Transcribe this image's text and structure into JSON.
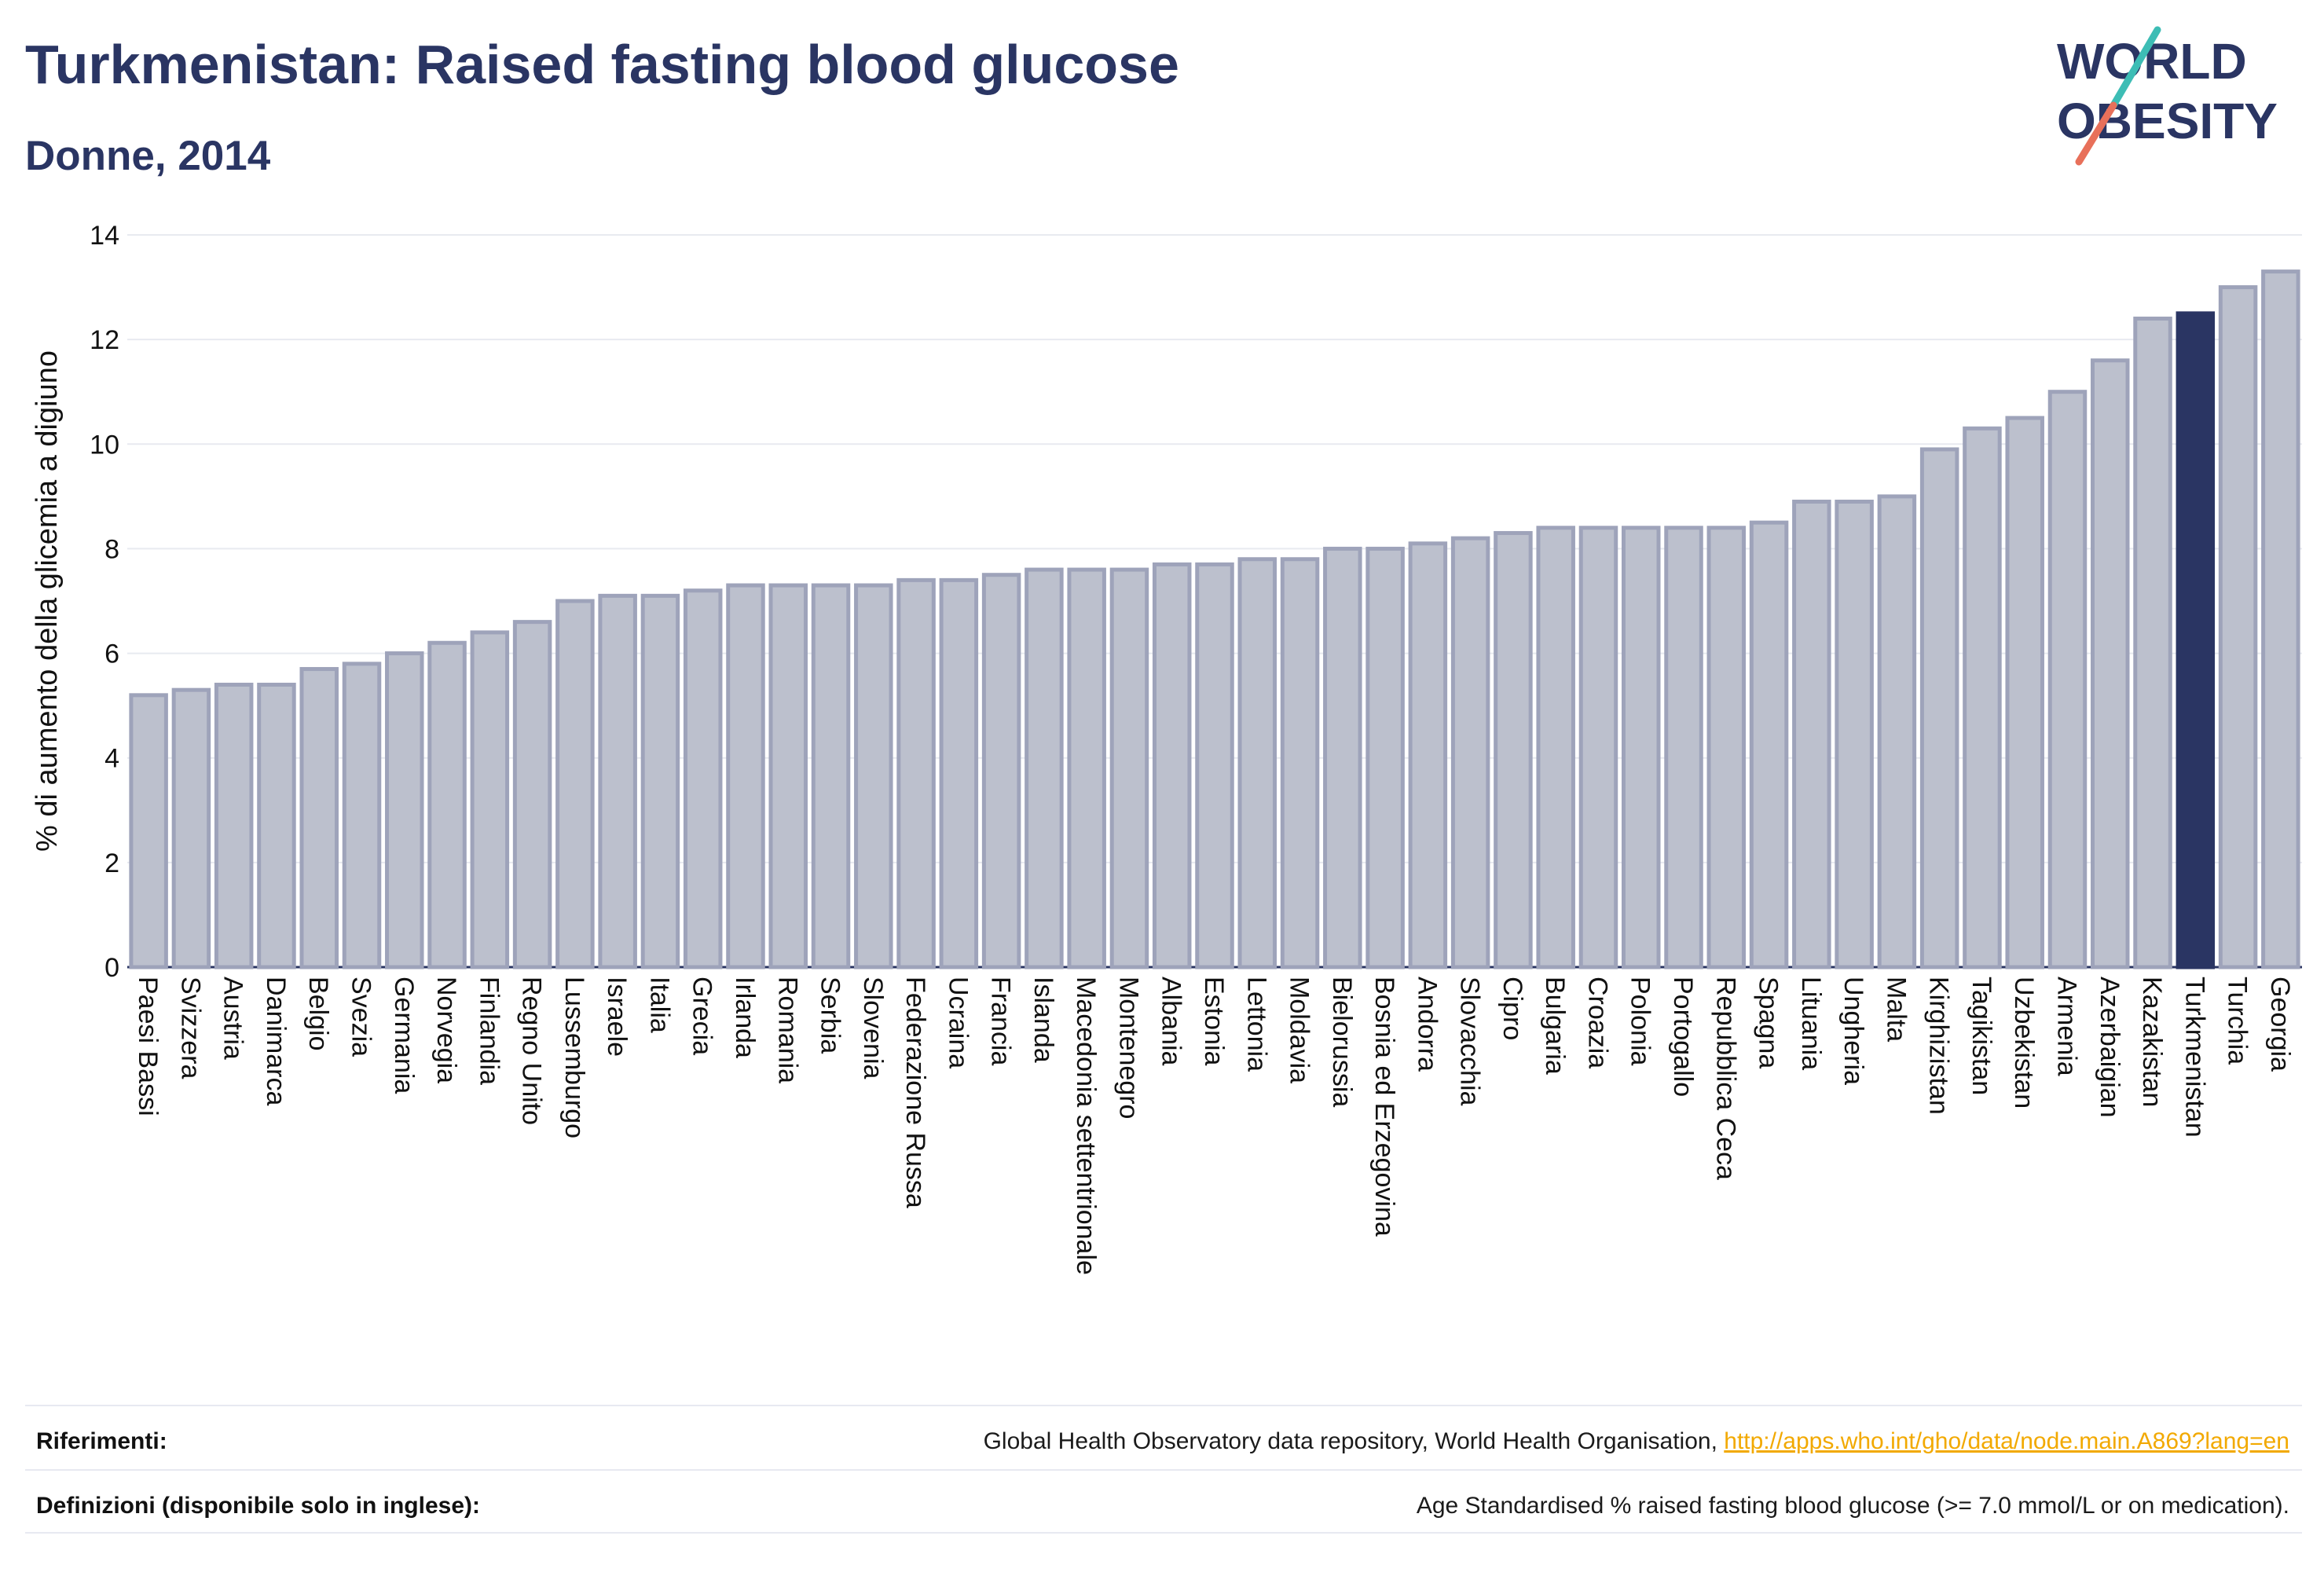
{
  "header": {
    "title": "Turkmenistan: Raised fasting blood glucose",
    "subtitle": "Donne, 2014"
  },
  "logo": {
    "line1": "WORLD",
    "line2": "OBESITY",
    "text_color": "#2a3563",
    "slash_colors": [
      "#3dbdb5",
      "#e8705a"
    ]
  },
  "colors": {
    "bar_default": "#bcc0cd",
    "bar_outline": "#9ea3ba",
    "bar_highlight": "#2a3563",
    "grid": "#e8eaf0",
    "axis_text": "#111111"
  },
  "chart_data": {
    "type": "bar",
    "ylabel": "% di aumento della glicemia a digiuno",
    "ylim": [
      0,
      14
    ],
    "yticks": [
      0,
      2,
      4,
      6,
      8,
      10,
      12,
      14
    ],
    "grid": true,
    "highlight": "Turkmenistan",
    "categories": [
      "Paesi Bassi",
      "Svizzera",
      "Austria",
      "Danimarca",
      "Belgio",
      "Svezia",
      "Germania",
      "Norvegia",
      "Finlandia",
      "Regno Unito",
      "Lussemburgo",
      "Israele",
      "Italia",
      "Grecia",
      "Irlanda",
      "Romania",
      "Serbia",
      "Slovenia",
      "Federazione Russa",
      "Ucraina",
      "Francia",
      "Islanda",
      "Macedonia settentrionale",
      "Montenegro",
      "Albania",
      "Estonia",
      "Lettonia",
      "Moldavia",
      "Bielorussia",
      "Bosnia ed Erzegovina",
      "Andorra",
      "Slovacchia",
      "Cipro",
      "Bulgaria",
      "Croazia",
      "Polonia",
      "Portogallo",
      "Repubblica Ceca",
      "Spagna",
      "Lituania",
      "Ungheria",
      "Malta",
      "Kirghizistan",
      "Tagikistan",
      "Uzbekistan",
      "Armenia",
      "Azerbaigian",
      "Kazakistan",
      "Turkmenistan",
      "Turchia",
      "Georgia"
    ],
    "values": [
      5.2,
      5.3,
      5.4,
      5.4,
      5.7,
      5.8,
      6.0,
      6.2,
      6.4,
      6.6,
      7.0,
      7.1,
      7.1,
      7.2,
      7.3,
      7.3,
      7.3,
      7.3,
      7.4,
      7.4,
      7.5,
      7.6,
      7.6,
      7.6,
      7.7,
      7.7,
      7.8,
      7.8,
      8.0,
      8.0,
      8.1,
      8.2,
      8.3,
      8.4,
      8.4,
      8.4,
      8.4,
      8.4,
      8.5,
      8.9,
      8.9,
      9.0,
      9.9,
      10.3,
      10.5,
      11.0,
      11.6,
      12.4,
      12.5,
      13.0,
      13.3
    ]
  },
  "footer": {
    "references_label": "Riferimenti:",
    "references_text": "Global Health Observatory data repository, World Health Organisation, ",
    "references_link": "http://apps.who.int/gho/data/node.main.A869?lang=en",
    "definitions_label": "Definizioni (disponibile solo in inglese):",
    "definitions_text": "Age Standardised % raised fasting blood glucose (>= 7.0 mmol/L or on medication)."
  }
}
